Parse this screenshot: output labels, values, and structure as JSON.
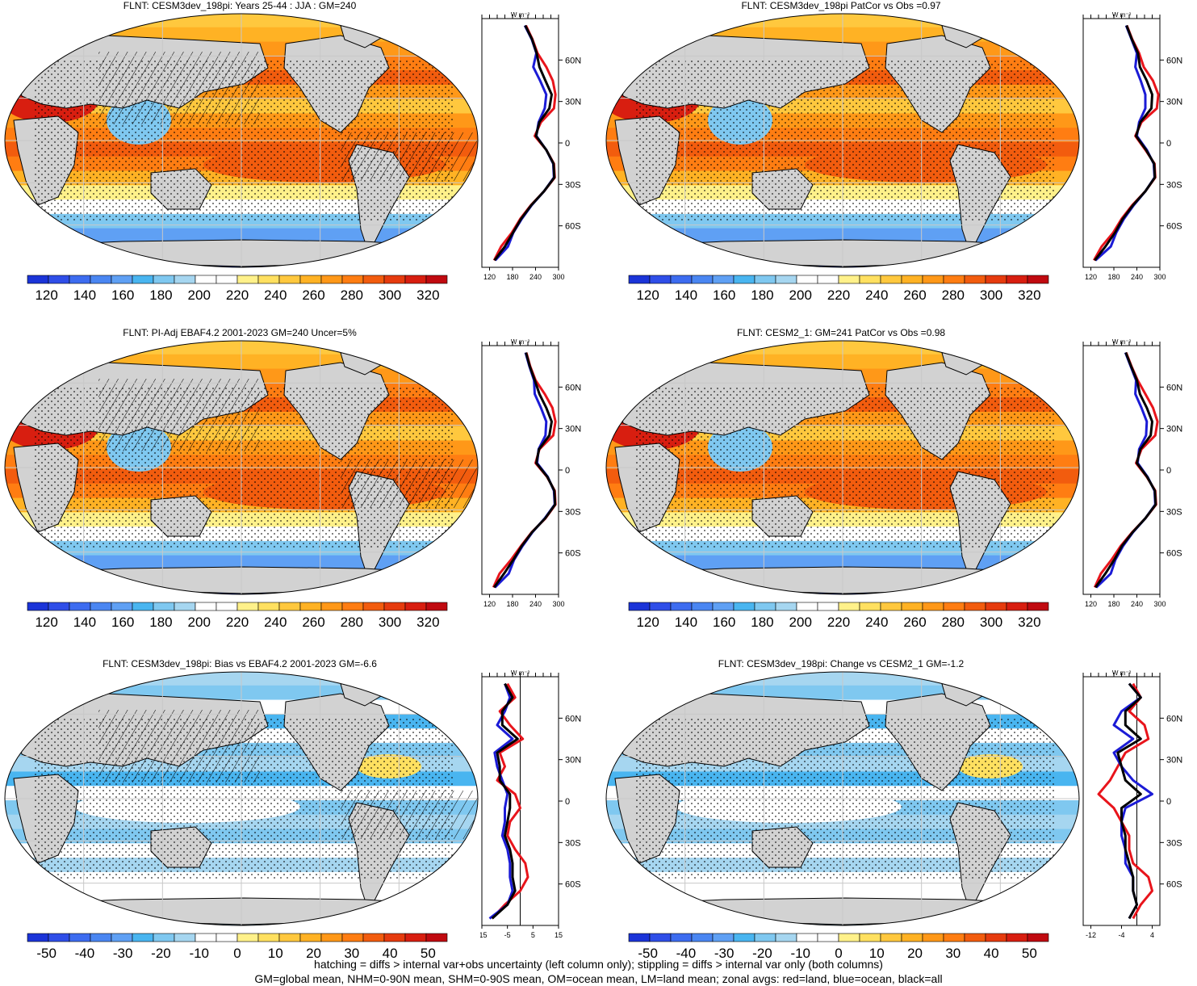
{
  "footer": {
    "line1": "hatching = diffs > internal var+obs uncertainty (left column only); stippling = diffs > internal var only (both columns)",
    "line2": "GM=global mean, NHM=0-90N mean, SHM=0-90S mean, OM=ocean mean, LM=land mean; zonal avgs: red=land, blue=ocean, black=all"
  },
  "colors": {
    "land": "#d2d2d2",
    "coast": "#000000",
    "grid": "#c8c8c8",
    "zonal_land": "#e8141b",
    "zonal_ocean": "#1b1bd6",
    "zonal_all": "#000000",
    "abs_scale": [
      "#1b34d8",
      "#2f4ee8",
      "#3d6cf0",
      "#4a86f2",
      "#5fa0f4",
      "#49b5f0",
      "#7fc8f0",
      "#a6d6f0",
      "#ffffff",
      "#ffffff",
      "#fff18a",
      "#ffe060",
      "#ffc83e",
      "#ffb224",
      "#ff9818",
      "#ff7d12",
      "#f25c0e",
      "#e63b0e",
      "#d81e10",
      "#c00a10"
    ],
    "diff_scale": [
      "#1b34d8",
      "#2f4ee8",
      "#3d6cf0",
      "#4a86f2",
      "#5fa0f4",
      "#49b5f0",
      "#7fc8f0",
      "#a6d6f0",
      "#ffffff",
      "#ffffff",
      "#fff18a",
      "#ffe060",
      "#ffc83e",
      "#ffb224",
      "#ff9818",
      "#ff7d12",
      "#f25c0e",
      "#e63b0e",
      "#d81e10",
      "#c00a10"
    ]
  },
  "chart_data": [
    {
      "type": "heatmap",
      "title": "FLNT: CESM3dev_198pi: Years 25-44 : JJA : GM=240",
      "kind": "abs",
      "hatching": true,
      "colorbar": {
        "ticks": [
          120,
          140,
          160,
          180,
          200,
          220,
          240,
          260,
          280,
          300,
          320
        ],
        "range": [
          110,
          330
        ]
      },
      "zonal": {
        "units": "W m⁻²",
        "xlim": [
          100,
          300
        ],
        "xticks": [
          120,
          180,
          240,
          300
        ],
        "lat_ticks": [
          "60N",
          "30N",
          "0",
          "30S",
          "60S"
        ],
        "lat": [
          85,
          75,
          65,
          55,
          45,
          35,
          25,
          15,
          5,
          -5,
          -15,
          -25,
          -35,
          -45,
          -55,
          -65,
          -75,
          -85
        ],
        "land": [
          215,
          232,
          245,
          268,
          285,
          292,
          288,
          254,
          238,
          268,
          288,
          290,
          262,
          228,
          200,
          178,
          150,
          132
        ],
        "ocean": [
          212,
          230,
          242,
          234,
          252,
          268,
          264,
          248,
          242,
          268,
          286,
          288,
          262,
          230,
          204,
          182,
          168,
          135
        ],
        "all": [
          213,
          231,
          243,
          250,
          266,
          282,
          276,
          250,
          241,
          268,
          287,
          289,
          262,
          229,
          202,
          181,
          160,
          133
        ]
      }
    },
    {
      "type": "heatmap",
      "title": "FLNT: CESM3dev_198pi PatCor vs Obs =0.97",
      "kind": "abs",
      "hatching": false,
      "colorbar": {
        "ticks": [
          120,
          140,
          160,
          180,
          200,
          220,
          240,
          260,
          280,
          300,
          320
        ],
        "range": [
          110,
          330
        ]
      },
      "zonal": {
        "units": "W m⁻²",
        "xlim": [
          100,
          300
        ],
        "xticks": [
          120,
          180,
          240,
          300
        ],
        "lat_ticks": [
          "60N",
          "30N",
          "0",
          "30S",
          "60S"
        ],
        "lat": [
          85,
          75,
          65,
          55,
          45,
          35,
          25,
          15,
          5,
          -5,
          -15,
          -25,
          -35,
          -45,
          -55,
          -65,
          -75,
          -85
        ],
        "land": [
          214,
          228,
          246,
          258,
          282,
          296,
          292,
          252,
          236,
          262,
          286,
          288,
          262,
          228,
          200,
          178,
          148,
          128
        ],
        "ocean": [
          212,
          226,
          240,
          236,
          250,
          262,
          262,
          246,
          240,
          266,
          284,
          286,
          262,
          232,
          206,
          186,
          172,
          132
        ],
        "all": [
          213,
          227,
          243,
          248,
          266,
          280,
          278,
          249,
          238,
          264,
          285,
          287,
          262,
          230,
          203,
          183,
          158,
          130
        ]
      }
    },
    {
      "type": "heatmap",
      "title": "FLNT: PI-Adj EBAF4.2 2001-2023 GM=240 Uncer=5%",
      "kind": "abs",
      "hatching": true,
      "colorbar": {
        "ticks": [
          120,
          140,
          160,
          180,
          200,
          220,
          240,
          260,
          280,
          300,
          320
        ],
        "range": [
          110,
          330
        ]
      },
      "zonal": {
        "units": "W m⁻²",
        "xlim": [
          100,
          300
        ],
        "xticks": [
          120,
          180,
          240,
          300
        ],
        "lat_ticks": [
          "60N",
          "30N",
          "0",
          "30S",
          "60S"
        ],
        "lat": [
          85,
          75,
          65,
          55,
          45,
          35,
          25,
          15,
          5,
          -5,
          -15,
          -25,
          -35,
          -45,
          -55,
          -65,
          -75,
          -85
        ],
        "land": [
          216,
          226,
          240,
          264,
          284,
          292,
          286,
          250,
          240,
          270,
          290,
          292,
          266,
          230,
          202,
          176,
          146,
          130
        ],
        "ocean": [
          214,
          224,
          236,
          238,
          254,
          268,
          266,
          248,
          244,
          272,
          288,
          290,
          264,
          232,
          206,
          184,
          170,
          134
        ],
        "all": [
          215,
          225,
          238,
          250,
          268,
          282,
          276,
          249,
          242,
          271,
          289,
          291,
          265,
          231,
          204,
          182,
          158,
          132
        ]
      }
    },
    {
      "type": "heatmap",
      "title": "FLNT: CESM2_1: GM=241 PatCor vs Obs =0.98",
      "kind": "abs",
      "hatching": false,
      "colorbar": {
        "ticks": [
          120,
          140,
          160,
          180,
          200,
          220,
          240,
          260,
          280,
          300,
          320
        ],
        "range": [
          110,
          330
        ]
      },
      "zonal": {
        "units": "W m⁻²",
        "xlim": [
          100,
          300
        ],
        "xticks": [
          120,
          180,
          240,
          300
        ],
        "lat_ticks": [
          "60N",
          "30N",
          "0",
          "30S",
          "60S"
        ],
        "lat": [
          85,
          75,
          65,
          55,
          45,
          35,
          25,
          15,
          5,
          -5,
          -15,
          -25,
          -35,
          -45,
          -55,
          -65,
          -75,
          -85
        ],
        "land": [
          212,
          226,
          242,
          262,
          282,
          294,
          288,
          252,
          238,
          266,
          288,
          290,
          262,
          228,
          198,
          174,
          146,
          130
        ],
        "ocean": [
          210,
          224,
          238,
          236,
          252,
          266,
          264,
          246,
          242,
          268,
          286,
          288,
          262,
          230,
          204,
          184,
          172,
          134
        ],
        "all": [
          211,
          225,
          240,
          248,
          266,
          280,
          276,
          249,
          240,
          267,
          287,
          289,
          262,
          229,
          201,
          181,
          158,
          132
        ]
      }
    },
    {
      "type": "heatmap",
      "title": "FLNT: CESM3dev_198pi: Bias vs EBAF4.2 2001-2023 GM=-6.6",
      "kind": "diff",
      "hatching": true,
      "colorbar": {
        "ticks": [
          -50,
          -40,
          -30,
          -20,
          -10,
          0,
          10,
          20,
          30,
          40,
          50
        ],
        "range": [
          -55,
          55
        ]
      },
      "zonal": {
        "units": "W m⁻²",
        "xlim": [
          -15,
          15
        ],
        "xticks": [
          -15,
          -5,
          5,
          15
        ],
        "ref_line": 0,
        "lat_ticks": [
          "60N",
          "30N",
          "0",
          "30S",
          "60S"
        ],
        "lat": [
          85,
          75,
          65,
          55,
          45,
          35,
          25,
          15,
          5,
          -5,
          -15,
          -25,
          -35,
          -45,
          -55,
          -65,
          -75,
          -85
        ],
        "land": [
          -5,
          -2,
          -8,
          -4,
          1,
          -8,
          -6,
          -9,
          -2,
          0,
          -4,
          -5,
          -2,
          2,
          3,
          0,
          -6,
          -11
        ],
        "ocean": [
          -6,
          -4,
          -6,
          -9,
          -3,
          -10,
          -9,
          -7,
          -5,
          -6,
          -6,
          -7,
          -5,
          -4,
          -4,
          -3,
          -5,
          -12
        ],
        "all": [
          -6,
          -3,
          -7,
          -7,
          -1,
          -9,
          -8,
          -8,
          -4,
          -4,
          -5,
          -6,
          -4,
          -3,
          -3,
          -2,
          -5,
          -11
        ]
      }
    },
    {
      "type": "heatmap",
      "title": "FLNT: CESM3dev_198pi: Change vs CESM2_1 GM=-1.2",
      "kind": "diff",
      "hatching": false,
      "colorbar": {
        "ticks": [
          -50,
          -40,
          -30,
          -20,
          -10,
          0,
          10,
          20,
          30,
          40,
          50
        ],
        "range": [
          -55,
          55
        ]
      },
      "zonal": {
        "units": "W m⁻²",
        "xlim": [
          -14,
          6
        ],
        "xticks": [
          -12,
          -4,
          4
        ],
        "ref_line": 0,
        "lat_ticks": [
          "60N",
          "30N",
          "0",
          "30S",
          "60S"
        ],
        "lat": [
          85,
          75,
          65,
          55,
          45,
          35,
          25,
          15,
          5,
          -5,
          -15,
          -25,
          -35,
          -45,
          -55,
          -65,
          -75,
          -85
        ],
        "land": [
          -1,
          1,
          -2,
          2,
          3,
          -3,
          -5,
          -7,
          -10,
          -6,
          -4,
          -2,
          -2,
          -1,
          3,
          4,
          1,
          -1
        ],
        "ocean": [
          -2,
          1,
          -4,
          -6,
          -1,
          -6,
          -4,
          -1,
          4,
          -3,
          -4,
          -4,
          -3,
          -3,
          -1,
          -1,
          0,
          -2
        ],
        "all": [
          -2,
          1,
          -3,
          -3,
          1,
          -5,
          -4,
          -3,
          1,
          -4,
          -4,
          -3,
          -3,
          -2,
          -1,
          -1,
          0,
          -2
        ]
      }
    }
  ]
}
